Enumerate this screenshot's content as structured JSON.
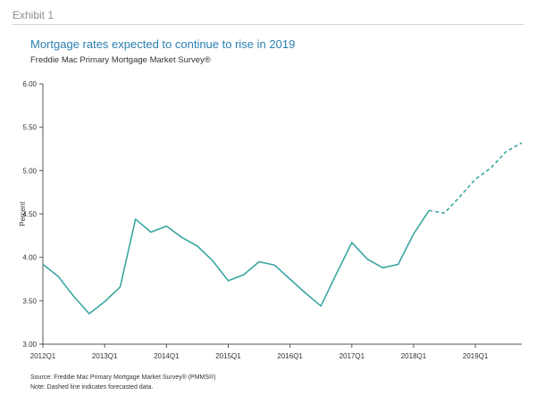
{
  "header": {
    "exhibit": "Exhibit 1",
    "title": "Mortgage rates expected to continue to rise in 2019",
    "subtitle": "Freddie Mac Primary Mortgage Market Survey®"
  },
  "footer": {
    "source": "Source: Freddie Mac Primary Mortgage Market Survey® (PMMS®)",
    "note": "Note: Dashed line indicates forecasted data."
  },
  "colors": {
    "line": "#3aa6a0",
    "title": "#2c7fb0",
    "axis": "#555555"
  },
  "chart_data": {
    "type": "line",
    "title": "Mortgage rates expected to continue to rise in 2019",
    "subtitle": "Freddie Mac Primary Mortgage Market Survey®",
    "ylabel": "Percent",
    "xlabel": "",
    "ylim": [
      3.0,
      6.0
    ],
    "yticks": [
      "3.00",
      "3.50",
      "4.00",
      "4.50",
      "5.00",
      "5.50",
      "6.00"
    ],
    "x_tick_labels": [
      "2012Q1",
      "2013Q1",
      "2014Q1",
      "2015Q1",
      "2016Q1",
      "2017Q1",
      "2018Q1",
      "2019Q1"
    ],
    "grid": false,
    "series": [
      {
        "style": "solid",
        "x": [
          "2012Q1",
          "2012Q2",
          "2012Q3",
          "2012Q4",
          "2013Q1",
          "2013Q2",
          "2013Q3",
          "2013Q4",
          "2014Q1",
          "2014Q2",
          "2014Q3",
          "2014Q4",
          "2015Q1",
          "2015Q2",
          "2015Q3",
          "2015Q4",
          "2016Q1",
          "2016Q2",
          "2016Q3",
          "2016Q4",
          "2017Q1",
          "2017Q2",
          "2017Q3",
          "2017Q4",
          "2018Q1",
          "2018Q2"
        ],
        "values": [
          3.92,
          3.78,
          3.55,
          3.35,
          3.49,
          3.66,
          4.44,
          4.29,
          4.36,
          4.23,
          4.13,
          3.96,
          3.73,
          3.8,
          3.95,
          3.91,
          3.75,
          3.59,
          3.44,
          3.81,
          4.17,
          3.98,
          3.88,
          3.92,
          4.27,
          4.54
        ]
      },
      {
        "style": "dashed",
        "x": [
          "2018Q2",
          "2018Q3",
          "2018Q4",
          "2019Q1",
          "2019Q2",
          "2019Q3",
          "2019Q4"
        ],
        "values": [
          4.54,
          4.51,
          4.7,
          4.9,
          5.03,
          5.22,
          5.32
        ]
      }
    ]
  }
}
